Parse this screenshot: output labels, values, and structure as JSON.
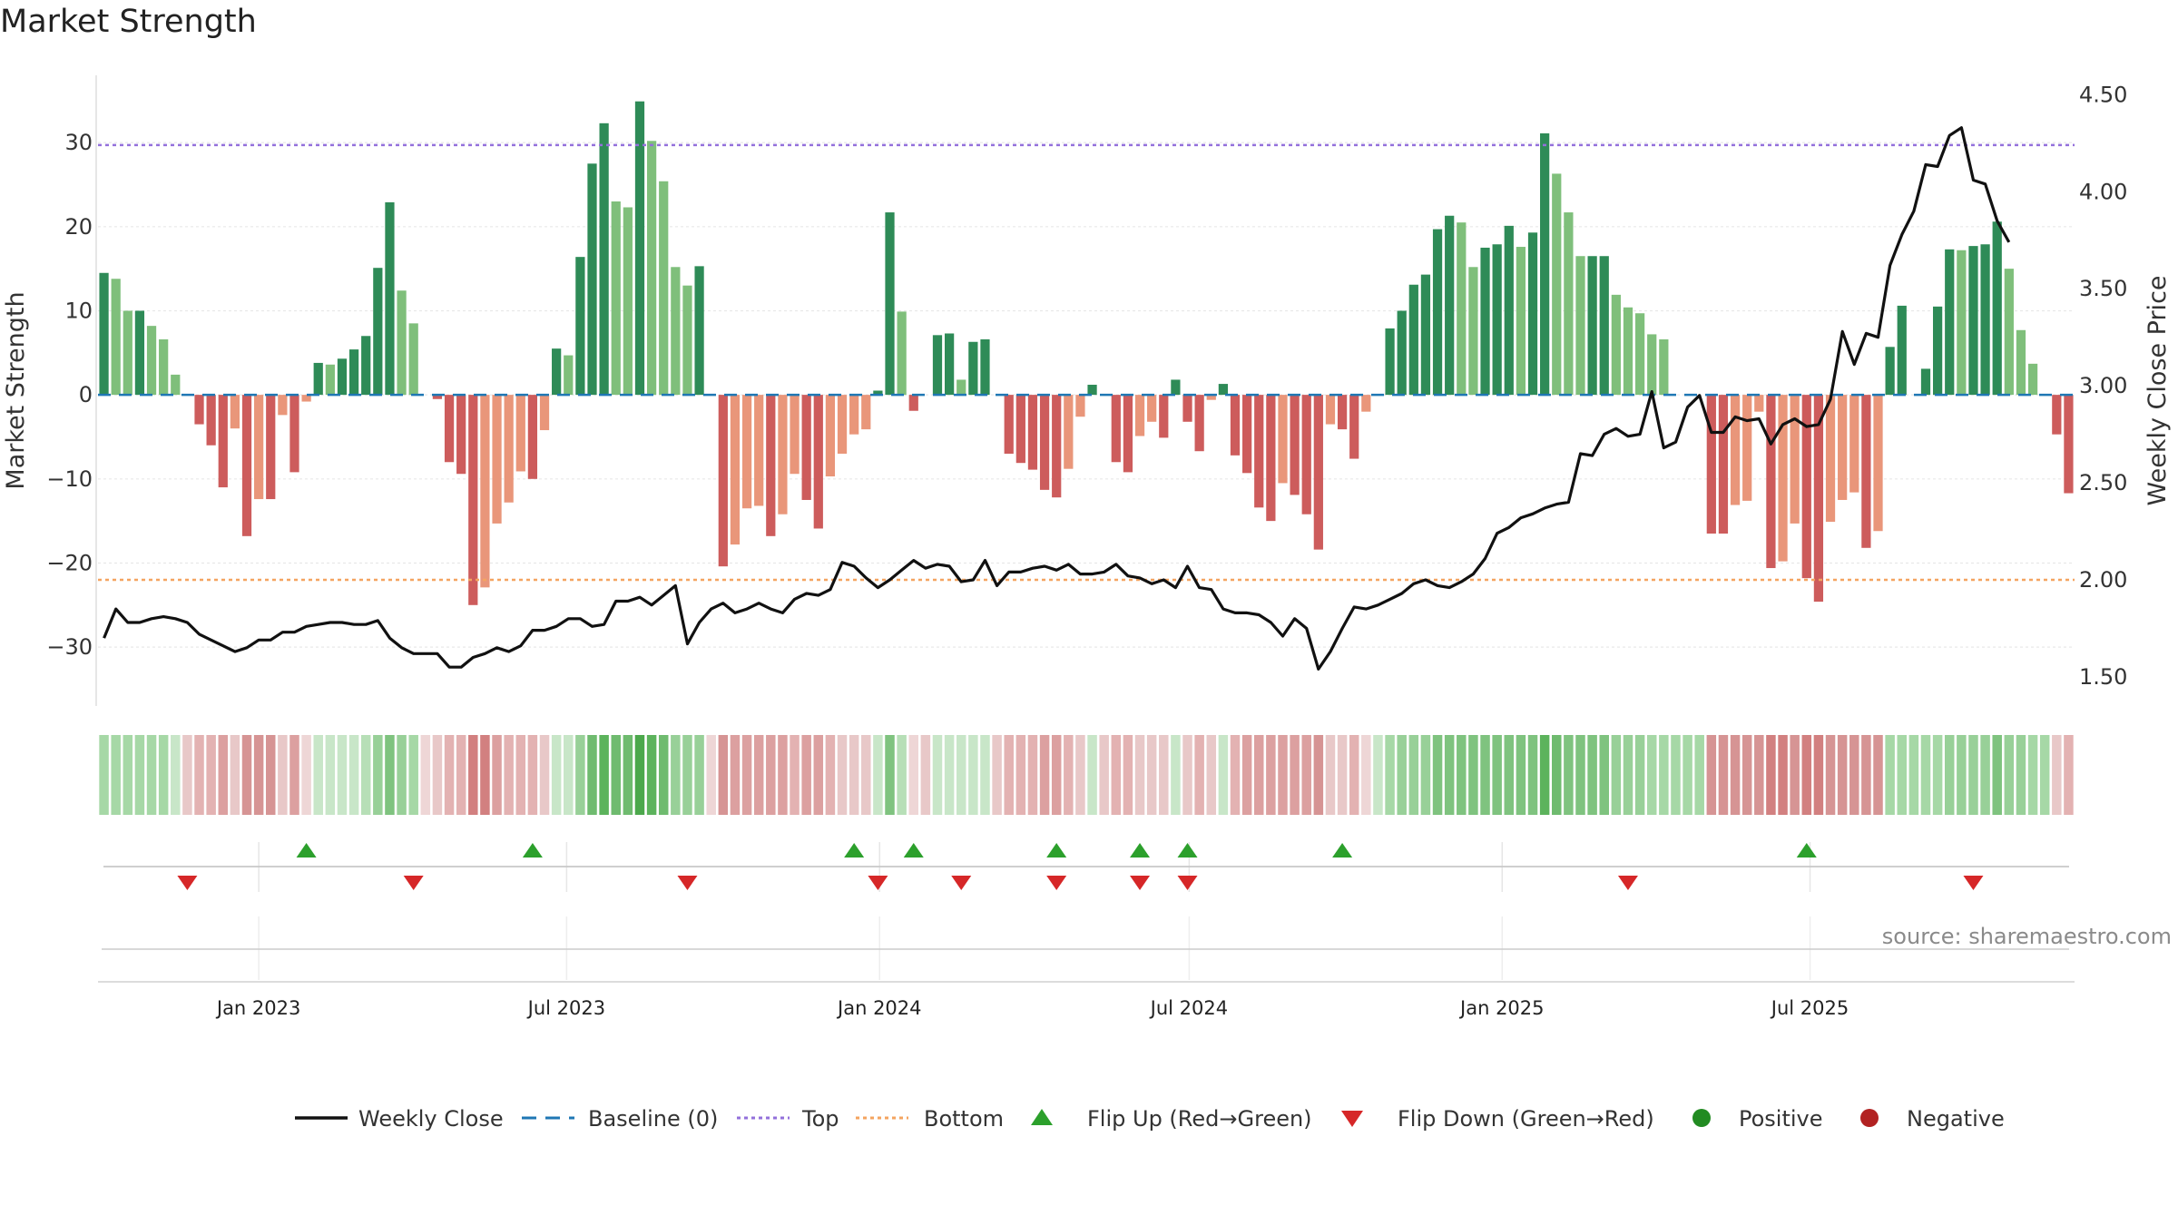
{
  "title": "Market Strength",
  "source": "source: sharemaestro.com",
  "colors": {
    "strong_green": "#2e8b57",
    "light_green": "#7fbf7b",
    "strong_red": "#cd5c5c",
    "light_red": "#e9967a",
    "top_line": "#9370db",
    "bottom_line": "#f4a460",
    "baseline": "#1f77b4",
    "close_line": "#111111",
    "flip_up": "#2ca02c",
    "flip_down": "#d62728",
    "positive": "#228b22",
    "negative": "#b22222"
  },
  "legend": [
    {
      "label": "Weekly Close",
      "symbol": "solid-line",
      "color": "#111111"
    },
    {
      "label": "Baseline (0)",
      "symbol": "dash-line",
      "color": "#1f77b4"
    },
    {
      "label": "Top",
      "symbol": "dot-line",
      "color": "#9370db"
    },
    {
      "label": "Bottom",
      "symbol": "dot-line",
      "color": "#f4a460"
    },
    {
      "label": "Flip Up (Red→Green)",
      "symbol": "triangle-up",
      "color": "#2ca02c"
    },
    {
      "label": "Flip Down (Green→Red)",
      "symbol": "triangle-down",
      "color": "#d62728"
    },
    {
      "label": "Positive",
      "symbol": "circle",
      "color": "#228b22"
    },
    {
      "label": "Negative",
      "symbol": "circle",
      "color": "#b22222"
    }
  ],
  "chart_data": {
    "type": "bar",
    "x_start": "2022-10-02",
    "x_step_days": 7,
    "y_left_label": "Market Strength",
    "y_right_label": "Weekly Close Price",
    "y_left_ticks": [
      30,
      20,
      10,
      0,
      -10,
      -20,
      -30
    ],
    "y_left_tick_labels": [
      "30",
      "20",
      "10",
      "0",
      "−10",
      "−20",
      "−30"
    ],
    "y_left_range": [
      -37,
      38
    ],
    "y_right_ticks": [
      4.5,
      4.0,
      3.5,
      3.0,
      2.5,
      2.0,
      1.5
    ],
    "y_right_tick_labels": [
      "4.50",
      "4.00",
      "3.50",
      "3.00",
      "2.50",
      "2.00",
      "1.50"
    ],
    "y_right_range": [
      1.35,
      4.6
    ],
    "top_level": 29.7,
    "bottom_level": -22,
    "x_tick_labels": [
      "Jan 2023",
      "Jul 2023",
      "Jan 2024",
      "Jul 2024",
      "Jan 2025",
      "Jul 2025"
    ],
    "x_tick_dates": [
      "2023-01-01",
      "2023-07-01",
      "2024-01-01",
      "2024-07-01",
      "2025-01-01",
      "2025-07-01"
    ],
    "strength": [
      14.5,
      13.8,
      10,
      10,
      8.2,
      6.6,
      2.4,
      0,
      -3.5,
      -6,
      -11,
      -4,
      -16.8,
      -12.4,
      -12.4,
      -2.4,
      -9.2,
      -0.8,
      3.8,
      3.6,
      4.3,
      5.4,
      7,
      15.1,
      22.9,
      12.4,
      8.5,
      0,
      -0.5,
      -8,
      -9.4,
      -25,
      -22.9,
      -15.3,
      -12.8,
      -9.1,
      -10,
      -4.2,
      5.5,
      4.7,
      16.4,
      27.5,
      32.3,
      23,
      22.3,
      34.9,
      30.2,
      25.4,
      15.2,
      13,
      15.3,
      0,
      -20.4,
      -17.8,
      -13.5,
      -13.2,
      -16.8,
      -14.2,
      -9.4,
      -12.5,
      -15.9,
      -9.7,
      -7,
      -4.7,
      -4.1,
      0.5,
      21.7,
      9.9,
      -1.9,
      0,
      7.1,
      7.3,
      1.8,
      6.3,
      6.6,
      0,
      -7,
      -8.1,
      -8.9,
      -11.3,
      -12.2,
      -8.8,
      -2.6,
      1.2,
      0,
      -8,
      -9.2,
      -4.9,
      -3.2,
      -5.1,
      1.8,
      -3.2,
      -6.7,
      -0.6,
      1.3,
      -7.2,
      -9.3,
      -13.4,
      -15,
      -10.5,
      -11.9,
      -14.2,
      -18.4,
      -3.5,
      -4.1,
      -7.6,
      -2,
      0,
      7.9,
      10,
      13.1,
      14.3,
      19.7,
      21.3,
      20.5,
      15.2,
      17.5,
      17.9,
      20.1,
      17.6,
      19.3,
      31.1,
      26.3,
      21.7,
      16.5,
      16.5,
      16.5,
      11.9,
      10.4,
      9.7,
      7.2,
      6.6,
      0,
      0,
      0,
      -16.5,
      -16.5,
      -13.1,
      -12.6,
      -2,
      -20.6,
      -19.8,
      -15.3,
      -21.8,
      -24.6,
      -15.1,
      -12.5,
      -11.6,
      -18.2,
      -16.2,
      5.7,
      10.6,
      0,
      3.1,
      10.5,
      17.3,
      17.2,
      17.7,
      17.9,
      20.6,
      15,
      7.7,
      3.7,
      0,
      -4.7,
      -11.7
    ],
    "close": [
      1.7,
      1.85,
      1.78,
      1.78,
      1.8,
      1.81,
      1.8,
      1.78,
      1.72,
      1.69,
      1.66,
      1.63,
      1.65,
      1.69,
      1.69,
      1.73,
      1.73,
      1.76,
      1.77,
      1.78,
      1.78,
      1.77,
      1.77,
      1.79,
      1.7,
      1.65,
      1.62,
      1.62,
      1.62,
      1.55,
      1.55,
      1.6,
      1.62,
      1.65,
      1.63,
      1.66,
      1.74,
      1.74,
      1.76,
      1.8,
      1.8,
      1.76,
      1.77,
      1.89,
      1.89,
      1.91,
      1.87,
      1.92,
      1.97,
      1.67,
      1.78,
      1.85,
      1.88,
      1.83,
      1.85,
      1.88,
      1.85,
      1.83,
      1.9,
      1.93,
      1.92,
      1.95,
      2.09,
      2.07,
      2.01,
      1.96,
      2.0,
      2.05,
      2.1,
      2.06,
      2.08,
      2.07,
      1.99,
      2.0,
      2.1,
      1.97,
      2.04,
      2.04,
      2.06,
      2.07,
      2.05,
      2.08,
      2.03,
      2.03,
      2.04,
      2.08,
      2.02,
      2.01,
      1.98,
      2.0,
      1.96,
      2.07,
      1.96,
      1.95,
      1.85,
      1.83,
      1.83,
      1.82,
      1.78,
      1.71,
      1.8,
      1.75,
      1.54,
      1.63,
      1.75,
      1.86,
      1.85,
      1.87,
      1.9,
      1.93,
      1.98,
      2.0,
      1.97,
      1.96,
      1.99,
      2.03,
      2.11,
      2.24,
      2.27,
      2.32,
      2.34,
      2.37,
      2.39,
      2.4,
      2.65,
      2.64,
      2.75,
      2.78,
      2.74,
      2.75,
      2.97,
      2.68,
      2.71,
      2.89,
      2.95,
      2.76,
      2.76,
      2.84,
      2.82,
      2.83,
      2.7,
      2.8,
      2.83,
      2.79,
      2.8,
      2.93,
      3.28,
      3.11,
      3.27,
      3.25,
      3.62,
      3.78,
      3.9,
      4.14,
      4.13,
      4.29,
      4.33,
      4.06,
      4.04,
      3.85,
      3.74
    ],
    "regime_colors": [
      "#a6d8a6",
      "#a6d8a6",
      "#a6d8a6",
      "#a6d8a6",
      "#a6d8a6",
      "#a6d8a6",
      "#c8e6c8",
      "#e8c8c8",
      "#e3b2b2",
      "#e3b2b2",
      "#dca0a0",
      "#e8c8c8",
      "#d69494",
      "#d69494",
      "#d69494",
      "#e8c8c8",
      "#dca0a0",
      "#eed6d6",
      "#c8e6c8",
      "#c8e6c8",
      "#c8e6c8",
      "#c8e6c8",
      "#b7dfb7",
      "#98d098",
      "#7fc37f",
      "#98d098",
      "#a6d8a6",
      "#eed6d6",
      "#e8c8c8",
      "#e3b2b2",
      "#e3b2b2",
      "#d28080",
      "#d28080",
      "#dca0a0",
      "#e3b2b2",
      "#e3b2b2",
      "#e3b2b2",
      "#e8c8c8",
      "#c8e6c8",
      "#c8e6c8",
      "#98d098",
      "#6fbb6f",
      "#5cb35c",
      "#6fbb6f",
      "#6fbb6f",
      "#4ca84c",
      "#5cb35c",
      "#6fbb6f",
      "#98d098",
      "#98d098",
      "#98d098",
      "#eed6d6",
      "#d69494",
      "#dca0a0",
      "#dca0a0",
      "#dca0a0",
      "#dca0a0",
      "#dca0a0",
      "#e3b2b2",
      "#dca0a0",
      "#dca0a0",
      "#e3b2b2",
      "#e8c8c8",
      "#e8c8c8",
      "#e8c8c8",
      "#c8e6c8",
      "#7fc37f",
      "#b7dfb7",
      "#eed6d6",
      "#e8c8c8",
      "#c8e6c8",
      "#c8e6c8",
      "#c8e6c8",
      "#c8e6c8",
      "#c8e6c8",
      "#e8c8c8",
      "#e3b2b2",
      "#e3b2b2",
      "#e3b2b2",
      "#dca0a0",
      "#dca0a0",
      "#e3b2b2",
      "#e8c8c8",
      "#c8e6c8",
      "#e8c8c8",
      "#e3b2b2",
      "#e3b2b2",
      "#e8c8c8",
      "#e8c8c8",
      "#e8c8c8",
      "#c8e6c8",
      "#e8c8c8",
      "#e3b2b2",
      "#e8c8c8",
      "#c8e6c8",
      "#e3b2b2",
      "#dca0a0",
      "#dca0a0",
      "#dca0a0",
      "#dca0a0",
      "#dca0a0",
      "#dca0a0",
      "#d69494",
      "#e8c8c8",
      "#e8c8c8",
      "#e3b2b2",
      "#eed6d6",
      "#c8e6c8",
      "#a6d8a6",
      "#98d098",
      "#98d098",
      "#98d098",
      "#7fc37f",
      "#7fc37f",
      "#7fc37f",
      "#7fc37f",
      "#7fc37f",
      "#7fc37f",
      "#7fc37f",
      "#7fc37f",
      "#7fc37f",
      "#5cb35c",
      "#6fbb6f",
      "#7fc37f",
      "#7fc37f",
      "#7fc37f",
      "#7fc37f",
      "#98d098",
      "#98d098",
      "#98d098",
      "#a6d8a6",
      "#a6d8a6",
      "#a6d8a6",
      "#a6d8a6",
      "#a6d8a6",
      "#d69494",
      "#d69494",
      "#d69494",
      "#d69494",
      "#d69494",
      "#d28080",
      "#d28080",
      "#d69494",
      "#d28080",
      "#d28080",
      "#d69494",
      "#d69494",
      "#d69494",
      "#d69494",
      "#d69494",
      "#a6d8a6",
      "#a6d8a6",
      "#a6d8a6",
      "#a6d8a6",
      "#a6d8a6",
      "#98d098",
      "#98d098",
      "#98d098",
      "#98d098",
      "#7fc37f",
      "#98d098",
      "#98d098",
      "#a6d8a6",
      "#a6d8a6",
      "#e8c8c8",
      "#e3b2b2"
    ],
    "flip_up_indices": [
      17,
      36,
      63,
      68,
      80,
      87,
      91,
      104,
      143
    ],
    "flip_down_indices": [
      7,
      26,
      49,
      65,
      72,
      80,
      87,
      91,
      128,
      157
    ]
  }
}
